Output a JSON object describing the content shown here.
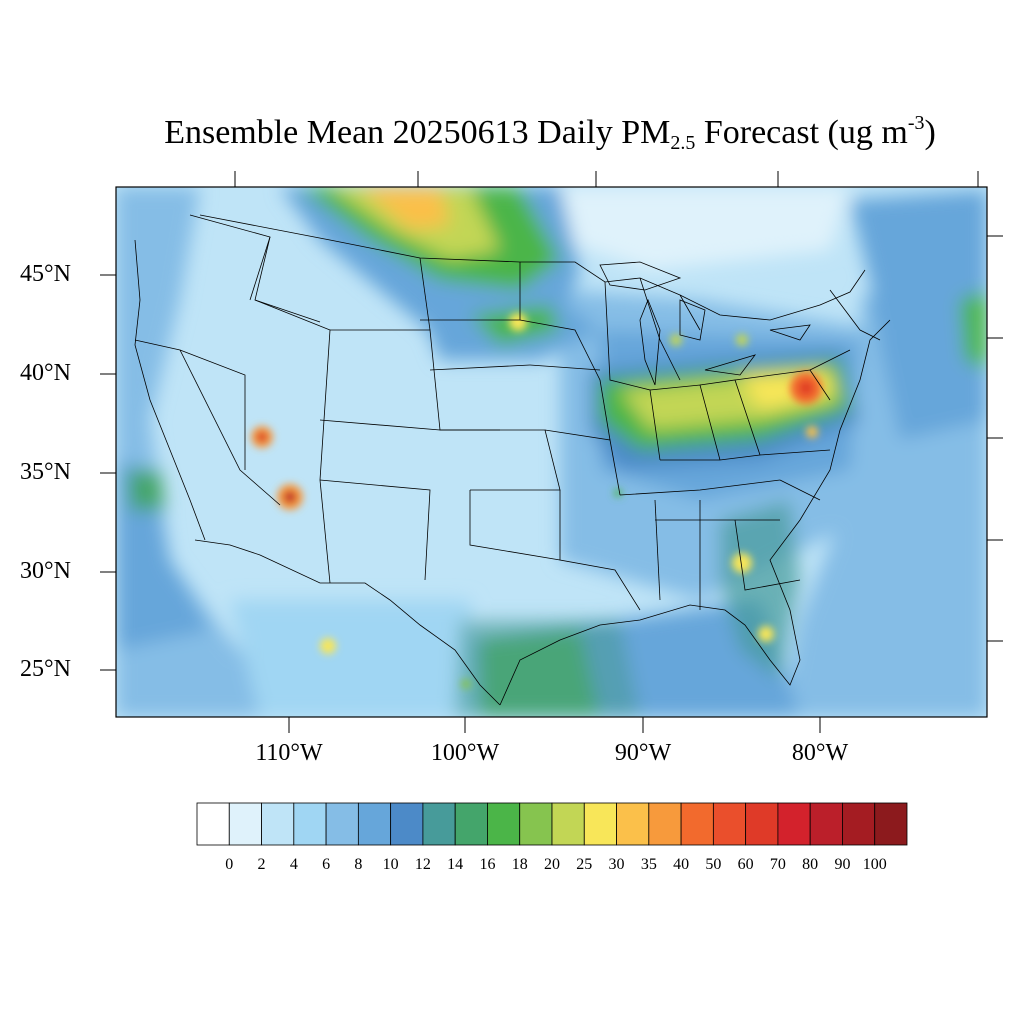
{
  "title": {
    "main": "Ensemble Mean 20250613 Daily PM",
    "sub": "2.5",
    "rest": " Forecast (ug m",
    "sup": "-3",
    "close": ")"
  },
  "axes": {
    "lat_labels": [
      "45°N",
      "40°N",
      "35°N",
      "30°N",
      "25°N"
    ],
    "lon_labels": [
      "110°W",
      "100°W",
      "90°W",
      "80°W"
    ]
  },
  "colorbar": {
    "labels": [
      "0",
      "2",
      "4",
      "6",
      "8",
      "10",
      "12",
      "14",
      "16",
      "18",
      "20",
      "25",
      "30",
      "35",
      "40",
      "50",
      "60",
      "70",
      "80",
      "90",
      "100"
    ],
    "colors": [
      "#ffffff",
      "#dff2fb",
      "#bfe4f7",
      "#a0d6f3",
      "#85bde6",
      "#66a6da",
      "#4c8ac8",
      "#479b9a",
      "#44a56b",
      "#4bb548",
      "#86c44f",
      "#c2d655",
      "#f8e659",
      "#fbc04a",
      "#f79a3c",
      "#f26a2d",
      "#ea4f2c",
      "#df3a28",
      "#d3222c",
      "#bb1f2a",
      "#a41c22",
      "#8c1a1d"
    ]
  },
  "map_features": {
    "background_level": "#bfe4f7",
    "hotspots": [
      {
        "name": "canada-smoke-plume",
        "level": "#f79a3c"
      },
      {
        "name": "ohio-valley",
        "level": "#f8e659"
      },
      {
        "name": "pennsylvania",
        "level": "#ea4f2c"
      },
      {
        "name": "utah-fire",
        "level": "#d3222c"
      },
      {
        "name": "arizona-fire",
        "level": "#bb1f2a"
      },
      {
        "name": "gulf-coast",
        "level": "#4bb548"
      }
    ]
  }
}
